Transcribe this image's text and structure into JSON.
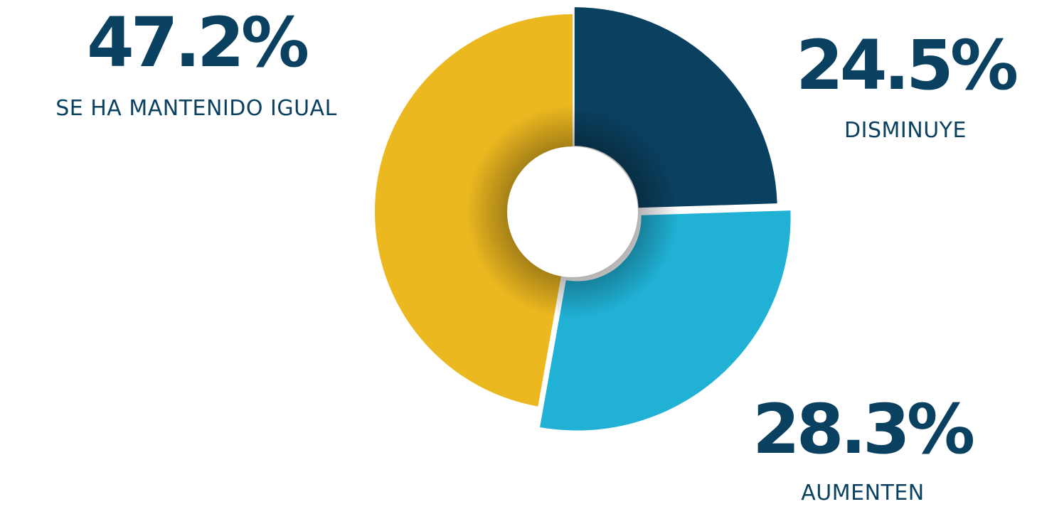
{
  "chart_data": {
    "type": "pie",
    "categories": [
      "DISMINUYE",
      "AUMENTEN",
      "SE HA MANTENIDO IGUAL"
    ],
    "values": [
      24.5,
      28.3,
      47.2
    ],
    "value_labels": [
      "24.5%",
      "28.3%",
      "47.2%"
    ],
    "colors": [
      "#0b4160",
      "#20b1d5",
      "#ecb820"
    ],
    "style": "donut, exploded slices, clockwise from 12 o'clock"
  }
}
